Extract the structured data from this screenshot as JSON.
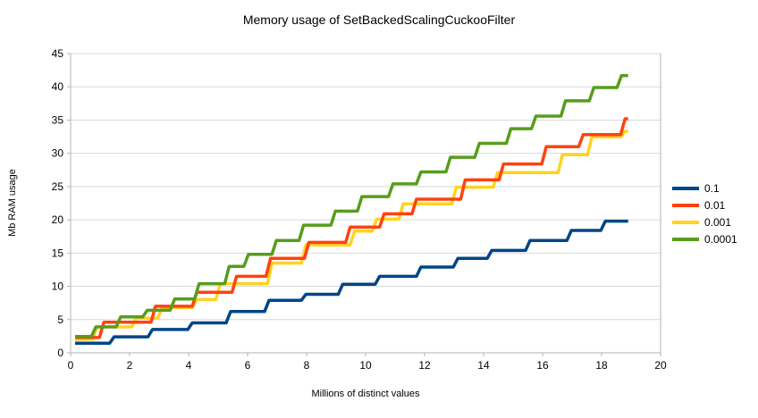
{
  "title": "Memory usage of SetBackedScalingCuckooFilter",
  "colors": {
    "background": "#ffffff",
    "gridline": "#d9d9d9",
    "axis": "#b3b3b3",
    "text": "#000000",
    "series_blue": "#004586",
    "series_red": "#ff420e",
    "series_yellow": "#ffd320",
    "series_green": "#579d1c"
  },
  "chart_data": {
    "type": "line",
    "step": true,
    "title": "Memory usage of SetBackedScalingCuckooFilter",
    "xlabel": "Millions of distinct values",
    "ylabel": "Mb RAM usage",
    "xlim": [
      0,
      20
    ],
    "ylim": [
      0,
      45
    ],
    "xticks": [
      0,
      2,
      4,
      6,
      8,
      10,
      12,
      14,
      16,
      18,
      20
    ],
    "yticks": [
      0,
      5,
      10,
      15,
      20,
      25,
      30,
      35,
      40,
      45
    ],
    "grid": "horizontal-only",
    "legend_position": "right-middle",
    "x_start": 0.15,
    "x_end": 18.9,
    "draw_order": [
      0,
      2,
      1,
      3
    ],
    "series": [
      {
        "name": "0.1",
        "color": "#004586",
        "steps": [
          [
            0.15,
            1.45
          ],
          [
            1.4,
            2.4
          ],
          [
            2.7,
            3.5
          ],
          [
            4.05,
            4.5
          ],
          [
            5.35,
            6.2
          ],
          [
            6.65,
            7.9
          ],
          [
            7.9,
            8.8
          ],
          [
            9.15,
            10.3
          ],
          [
            10.4,
            11.5
          ],
          [
            11.8,
            12.9
          ],
          [
            13.05,
            14.2
          ],
          [
            14.2,
            15.4
          ],
          [
            15.5,
            16.9
          ],
          [
            16.9,
            18.4
          ],
          [
            18.05,
            19.8
          ]
        ]
      },
      {
        "name": "0.01",
        "color": "#ff420e",
        "steps": [
          [
            0.15,
            2.3
          ],
          [
            1.05,
            4.6
          ],
          [
            2.8,
            7.0
          ],
          [
            4.2,
            9.1
          ],
          [
            5.55,
            11.5
          ],
          [
            6.7,
            14.2
          ],
          [
            8.0,
            16.6
          ],
          [
            9.4,
            18.9
          ],
          [
            10.55,
            20.9
          ],
          [
            11.65,
            23.1
          ],
          [
            13.3,
            26.0
          ],
          [
            14.6,
            28.4
          ],
          [
            16.05,
            31.0
          ],
          [
            17.3,
            32.8
          ],
          [
            18.72,
            35.2
          ]
        ]
      },
      {
        "name": "0.001",
        "color": "#ffd320",
        "steps": [
          [
            0.15,
            2.05
          ],
          [
            0.82,
            3.9
          ],
          [
            2.15,
            5.2
          ],
          [
            3.03,
            6.8
          ],
          [
            4.2,
            8.0
          ],
          [
            5.0,
            10.4
          ],
          [
            6.75,
            13.5
          ],
          [
            7.9,
            16.2
          ],
          [
            9.55,
            18.3
          ],
          [
            10.3,
            20.1
          ],
          [
            11.2,
            22.4
          ],
          [
            13.0,
            24.9
          ],
          [
            14.4,
            27.1
          ],
          [
            16.6,
            29.8
          ],
          [
            17.6,
            32.5
          ],
          [
            18.72,
            33.3
          ]
        ]
      },
      {
        "name": "0.0001",
        "color": "#579d1c",
        "steps": [
          [
            0.15,
            2.45
          ],
          [
            0.78,
            3.9
          ],
          [
            1.62,
            5.4
          ],
          [
            2.52,
            6.4
          ],
          [
            3.45,
            8.1
          ],
          [
            4.28,
            10.4
          ],
          [
            5.3,
            13.0
          ],
          [
            5.95,
            14.8
          ],
          [
            6.9,
            16.9
          ],
          [
            7.82,
            19.2
          ],
          [
            8.9,
            21.3
          ],
          [
            9.8,
            23.5
          ],
          [
            10.85,
            25.4
          ],
          [
            11.8,
            27.2
          ],
          [
            12.8,
            29.4
          ],
          [
            13.78,
            31.5
          ],
          [
            14.85,
            33.7
          ],
          [
            15.7,
            35.6
          ],
          [
            16.7,
            37.9
          ],
          [
            17.66,
            39.9
          ],
          [
            18.6,
            41.7
          ]
        ]
      }
    ]
  }
}
